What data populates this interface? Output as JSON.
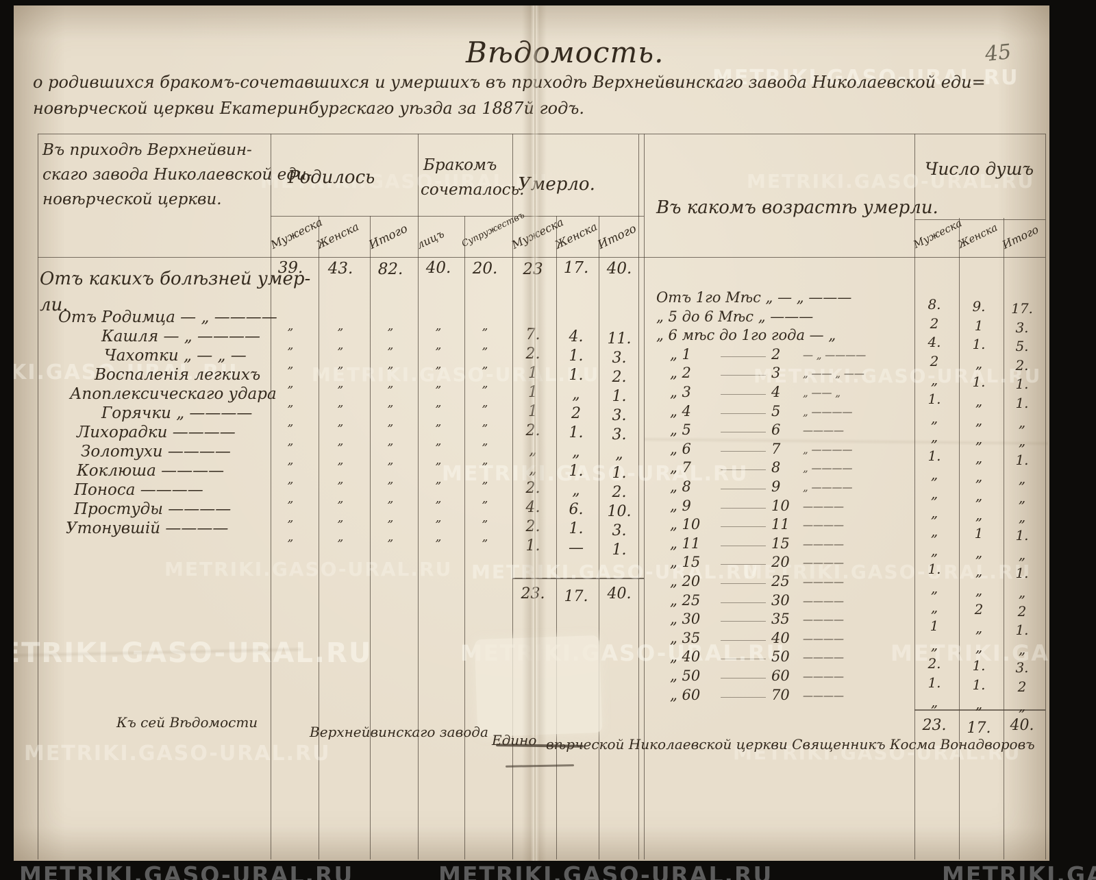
{
  "page": {
    "page_number": "45",
    "watermark_text": "METRIKI.GASO-URAL.RU",
    "colors": {
      "paper": "#e8decc",
      "ink": "#342a1e",
      "pencil_gray": "#6e6858",
      "rule_line": "#4a4034",
      "scan_border": "#0d0c0a",
      "watermark_on_black": "#5c5c5c"
    }
  },
  "header": {
    "title": "Вѣдомость.",
    "subtitle_line1": "о родившихся бракомъ-сочетавшихся и умершихъ въ приходѣ Верхнейвинскаго завода Николаевской еди=",
    "subtitle_line2": "новѣрческой церкви Екатеринбургскаго уѣзда за 1887й годъ."
  },
  "table": {
    "parish_column_header": [
      "Въ приходѣ Верхнейвин-",
      "скаго завода Николаевской еди-",
      "новѣрческой церкви."
    ],
    "group_headers": {
      "born": "Родилось",
      "married_line1": "Бракомъ",
      "married_line2": "сочеталось.",
      "died": "Умерло.",
      "age": "Въ какомъ возрастѣ умерли.",
      "souls": "Число душъ"
    },
    "subheaders": {
      "male": "Мужеска",
      "female": "Женска",
      "total": "Итого",
      "persons": "лицъ",
      "marriages": "Супружествъ"
    },
    "summary_row": {
      "born_male": "39.",
      "born_female": "43.",
      "born_total": "82.",
      "married_persons": "40.",
      "married_couples": "20.",
      "died_male": "23",
      "died_female": "17.",
      "died_total": "40."
    },
    "causes_section_header": [
      "Отъ какихъ болѣзней умер-",
      "ли."
    ],
    "ditto_mark": "„",
    "cause_rows": [
      {
        "label": "Отъ Родимца — „ ————",
        "died_male": "7.",
        "died_female": "4.",
        "died_total": "11."
      },
      {
        "label": "Кашля — „ ————",
        "died_male": "2.",
        "died_female": "1.",
        "died_total": "3."
      },
      {
        "label": "Чахотки „ — „ —",
        "died_male": "1",
        "died_female": "1.",
        "died_total": "2."
      },
      {
        "label": "Воспаленія легкихъ",
        "died_male": "1",
        "died_female": "„",
        "died_total": "1."
      },
      {
        "label": "Апоплексическаго удара",
        "died_male": "1",
        "died_female": "2",
        "died_total": "3."
      },
      {
        "label": "Горячки „ ————",
        "died_male": "2.",
        "died_female": "1.",
        "died_total": "3."
      },
      {
        "label": "Лихорадки ————",
        "died_male": "„",
        "died_female": "„",
        "died_total": "„"
      },
      {
        "label": "Золотухи ————",
        "died_male": "„",
        "died_female": "1.",
        "died_total": "1."
      },
      {
        "label": "Коклюша ————",
        "died_male": "2.",
        "died_female": "„",
        "died_total": "2."
      },
      {
        "label": "Поноса ————",
        "died_male": "4.",
        "died_female": "6.",
        "died_total": "10."
      },
      {
        "label": "Простуды ————",
        "died_male": "2.",
        "died_female": "1.",
        "died_total": "3."
      },
      {
        "label": "Утонувшій ————",
        "died_male": "1.",
        "died_female": "—",
        "died_total": "1."
      }
    ],
    "died_totals": {
      "male": "23.",
      "female": "17.",
      "total": "40."
    },
    "age_rows": [
      {
        "left": "Отъ 1го Мѣс „ — „ ———",
        "from": "",
        "to": "",
        "tail": "",
        "male": "8.",
        "female": "9.",
        "total": "17."
      },
      {
        "left": "„ 5 до 6 Мѣс „ ———",
        "from": "",
        "to": "",
        "tail": "",
        "male": "2",
        "female": "1",
        "total": "3."
      },
      {
        "left": "„ 6 мѣс до 1го года — „",
        "from": "",
        "to": "",
        "tail": "",
        "male": "4.",
        "female": "1.",
        "total": "5."
      },
      {
        "left": "",
        "from": "„ 1",
        "to": "2",
        "tail": "— „ ————",
        "male": "2",
        "female": "„",
        "total": "2."
      },
      {
        "left": "",
        "from": "„ 2",
        "to": "3",
        "tail": "„ —— „ ——",
        "male": "„",
        "female": "1.",
        "total": "1."
      },
      {
        "left": "",
        "from": "„ 3",
        "to": "4",
        "tail": "„ —— „",
        "male": "1.",
        "female": "„",
        "total": "1."
      },
      {
        "left": "",
        "from": "„ 4",
        "to": "5",
        "tail": "„ ————",
        "male": "„",
        "female": "„",
        "total": "„"
      },
      {
        "left": "",
        "from": "„ 5",
        "to": "6",
        "tail": "————",
        "male": "„",
        "female": "„",
        "total": "„"
      },
      {
        "left": "",
        "from": "„ 6",
        "to": "7",
        "tail": "„ ————",
        "male": "1.",
        "female": "„",
        "total": "1."
      },
      {
        "left": "",
        "from": "„ 7",
        "to": "8",
        "tail": "„ ————",
        "male": "„",
        "female": "„",
        "total": "„"
      },
      {
        "left": "",
        "from": "„ 8",
        "to": "9",
        "tail": "„ ————",
        "male": "„",
        "female": "„",
        "total": "„"
      },
      {
        "left": "",
        "from": "„ 9",
        "to": "10",
        "tail": "————",
        "male": "„",
        "female": "„",
        "total": "„"
      },
      {
        "left": "",
        "from": "„ 10",
        "to": "11",
        "tail": "————",
        "male": "„",
        "female": "1",
        "total": "1."
      },
      {
        "left": "",
        "from": "„ 11",
        "to": "15",
        "tail": "————",
        "male": "„",
        "female": "„",
        "total": "„"
      },
      {
        "left": "",
        "from": "„ 15",
        "to": "20",
        "tail": "————",
        "male": "1.",
        "female": "„",
        "total": "1."
      },
      {
        "left": "",
        "from": "„ 20",
        "to": "25",
        "tail": "————",
        "male": "„",
        "female": "„",
        "total": "„"
      },
      {
        "left": "",
        "from": "„ 25",
        "to": "30",
        "tail": "————",
        "male": "„",
        "female": "2",
        "total": "2"
      },
      {
        "left": "",
        "from": "„ 30",
        "to": "35",
        "tail": "————",
        "male": "1",
        "female": "„",
        "total": "1."
      },
      {
        "left": "",
        "from": "„ 35",
        "to": "40",
        "tail": "————",
        "male": "„",
        "female": "„",
        "total": "„"
      },
      {
        "left": "",
        "from": "„ 40",
        "to": "50",
        "tail": "————",
        "male": "2.",
        "female": "1.",
        "total": "3."
      },
      {
        "left": "",
        "from": "„ 50",
        "to": "60",
        "tail": "————",
        "male": "1.",
        "female": "1.",
        "total": "2"
      },
      {
        "left": "",
        "from": "„ 60",
        "to": "70",
        "tail": "————",
        "male": "„",
        "female": "„",
        "total": "„"
      }
    ],
    "souls_totals": {
      "male": "23.",
      "female": "17.",
      "total": "40."
    },
    "signature_parts": [
      "Къ сей Вѣдомости",
      "Верхнейвинскаго завода",
      "Едино",
      "вѣрческой Николаевской церкви Священникъ Косма Вонадворовъ"
    ]
  }
}
